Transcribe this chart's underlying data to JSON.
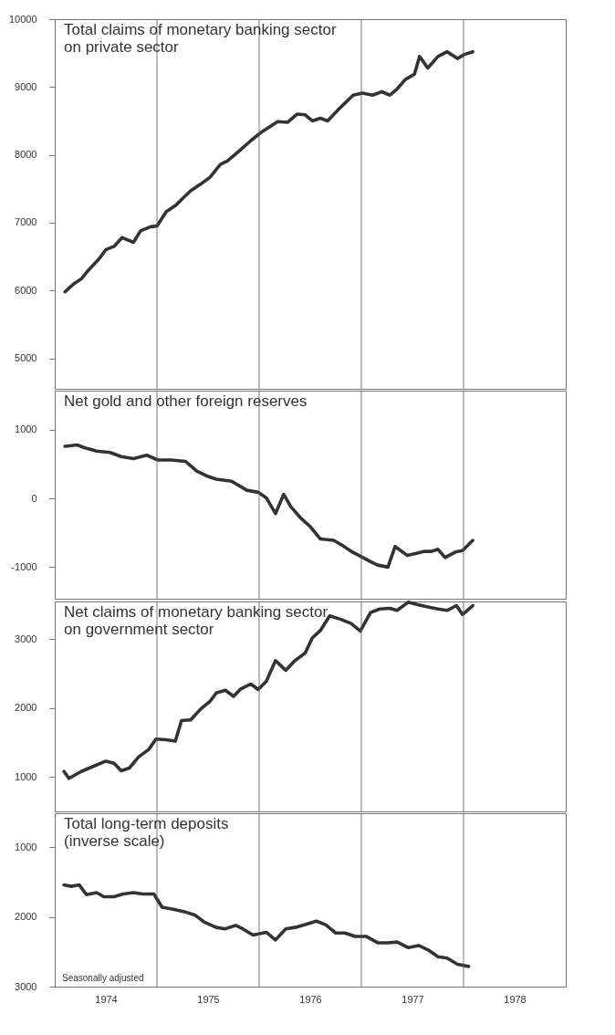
{
  "chart_data": [
    {
      "type": "line",
      "title": "Total claims of monetary banking sector\non private sector",
      "xlim": [
        1974,
        1979
      ],
      "tick_labels": "y",
      "ylim": [
        4550,
        10000
      ],
      "yticks": [
        5000,
        6000,
        7000,
        8000,
        9000,
        10000
      ],
      "ref_lines": [
        {
          "axis": "x",
          "value": 1975
        },
        {
          "axis": "x",
          "value": 1976
        },
        {
          "axis": "x",
          "value": 1977
        },
        {
          "axis": "x",
          "value": 1978
        }
      ],
      "grid": false,
      "series": [
        {
          "color": "#333333",
          "x": [
            1974.1,
            1974.18,
            1974.26,
            1974.33,
            1974.43,
            1974.5,
            1974.58,
            1974.66,
            1974.77,
            1974.84,
            1974.94,
            1975.0,
            1975.09,
            1975.18,
            1975.26,
            1975.33,
            1975.43,
            1975.52,
            1975.62,
            1975.69,
            1975.8,
            1975.92,
            1976.01,
            1976.11,
            1976.18,
            1976.28,
            1976.37,
            1976.45,
            1976.52,
            1976.6,
            1976.67,
            1976.79,
            1976.92,
            1977.01,
            1977.11,
            1977.2,
            1977.28,
            1977.35,
            1977.43,
            1977.52,
            1977.57,
            1977.65,
            1977.75,
            1977.84,
            1977.94,
            1978.01,
            1978.09
          ],
          "values": [
            5980,
            6090,
            6170,
            6300,
            6460,
            6600,
            6650,
            6780,
            6710,
            6880,
            6940,
            6950,
            7160,
            7250,
            7370,
            7470,
            7570,
            7670,
            7860,
            7910,
            8050,
            8210,
            8320,
            8420,
            8490,
            8480,
            8600,
            8590,
            8500,
            8540,
            8500,
            8690,
            8880,
            8910,
            8880,
            8930,
            8880,
            8970,
            9110,
            9190,
            9450,
            9280,
            9450,
            9520,
            9420,
            9480,
            9520
          ]
        }
      ]
    },
    {
      "type": "line",
      "title": "Net gold and other foreign reserves",
      "xlim": [
        1974,
        1979
      ],
      "tick_labels": "y",
      "ylim": [
        -1460,
        1570
      ],
      "yticks": [
        -1000,
        0,
        1000
      ],
      "ref_lines": [
        {
          "axis": "x",
          "value": 1975
        },
        {
          "axis": "x",
          "value": 1976
        },
        {
          "axis": "x",
          "value": 1977
        },
        {
          "axis": "x",
          "value": 1978
        }
      ],
      "grid": false,
      "series": [
        {
          "color": "#333333",
          "x": [
            1974.1,
            1974.22,
            1974.29,
            1974.41,
            1974.54,
            1974.65,
            1974.77,
            1974.9,
            1975.01,
            1975.14,
            1975.28,
            1975.39,
            1975.5,
            1975.58,
            1975.73,
            1975.88,
            1975.99,
            1976.07,
            1976.16,
            1976.24,
            1976.31,
            1976.41,
            1976.5,
            1976.6,
            1976.73,
            1976.82,
            1976.9,
            1976.99,
            1977.09,
            1977.16,
            1977.26,
            1977.33,
            1977.45,
            1977.54,
            1977.62,
            1977.69,
            1977.75,
            1977.82,
            1977.92,
            1977.99,
            1978.09
          ],
          "values": [
            760,
            780,
            740,
            690,
            670,
            610,
            580,
            630,
            560,
            560,
            540,
            400,
            320,
            280,
            250,
            120,
            90,
            10,
            -220,
            60,
            -120,
            -290,
            -410,
            -590,
            -610,
            -690,
            -770,
            -840,
            -920,
            -970,
            -1000,
            -700,
            -830,
            -800,
            -770,
            -770,
            -740,
            -860,
            -780,
            -760,
            -610
          ]
        }
      ]
    },
    {
      "type": "line",
      "title": "Net claims of monetary banking sector\non government sector",
      "xlim": [
        1974,
        1979
      ],
      "tick_labels": "y",
      "ylim": [
        500,
        3550
      ],
      "yticks": [
        1000,
        2000,
        3000
      ],
      "ref_lines": [
        {
          "axis": "x",
          "value": 1975
        },
        {
          "axis": "x",
          "value": 1976
        },
        {
          "axis": "x",
          "value": 1977
        },
        {
          "axis": "x",
          "value": 1978
        }
      ],
      "grid": false,
      "series": [
        {
          "color": "#333333",
          "x": [
            1974.09,
            1974.14,
            1974.26,
            1974.37,
            1974.5,
            1974.58,
            1974.65,
            1974.73,
            1974.82,
            1974.92,
            1974.99,
            1975.09,
            1975.18,
            1975.24,
            1975.33,
            1975.43,
            1975.52,
            1975.58,
            1975.67,
            1975.75,
            1975.82,
            1975.92,
            1975.99,
            1976.07,
            1976.16,
            1976.26,
            1976.35,
            1976.45,
            1976.52,
            1976.6,
            1976.69,
            1976.8,
            1976.9,
            1976.99,
            1977.09,
            1977.18,
            1977.28,
            1977.35,
            1977.46,
            1977.56,
            1977.65,
            1977.75,
            1977.84,
            1977.93,
            1977.99,
            1978.09
          ],
          "values": [
            1080,
            980,
            1080,
            1150,
            1230,
            1200,
            1090,
            1130,
            1290,
            1400,
            1550,
            1540,
            1520,
            1820,
            1830,
            1990,
            2100,
            2220,
            2260,
            2170,
            2280,
            2350,
            2270,
            2390,
            2690,
            2550,
            2690,
            2800,
            3020,
            3130,
            3340,
            3290,
            3230,
            3120,
            3390,
            3440,
            3450,
            3420,
            3540,
            3500,
            3470,
            3440,
            3420,
            3490,
            3360,
            3490
          ]
        }
      ]
    },
    {
      "type": "line",
      "title": "Total long-term deposits\n(inverse scale)",
      "xlim": [
        1974,
        1979
      ],
      "xticks": [
        {
          "value": 1974.5,
          "label": "1974"
        },
        {
          "value": 1975.5,
          "label": "1975"
        },
        {
          "value": 1976.5,
          "label": "1976"
        },
        {
          "value": 1977.5,
          "label": "1977"
        },
        {
          "value": 1978.5,
          "label": "1978"
        }
      ],
      "ylim": [
        3000,
        510
      ],
      "yticks": [
        1000,
        2000,
        3000
      ],
      "ref_lines": [
        {
          "axis": "x",
          "value": 1975
        },
        {
          "axis": "x",
          "value": 1976
        },
        {
          "axis": "x",
          "value": 1977
        },
        {
          "axis": "x",
          "value": 1978
        }
      ],
      "grid": false,
      "annotations": [
        "Seasonally adjusted"
      ],
      "series": [
        {
          "color": "#333333",
          "x": [
            1974.09,
            1974.16,
            1974.24,
            1974.31,
            1974.41,
            1974.48,
            1974.58,
            1974.67,
            1974.77,
            1974.86,
            1974.97,
            1975.05,
            1975.16,
            1975.28,
            1975.37,
            1975.46,
            1975.58,
            1975.67,
            1975.77,
            1975.84,
            1975.94,
            1976.07,
            1976.16,
            1976.26,
            1976.35,
            1976.45,
            1976.56,
            1976.65,
            1976.75,
            1976.84,
            1976.94,
            1977.05,
            1977.16,
            1977.26,
            1977.35,
            1977.46,
            1977.56,
            1977.65,
            1977.75,
            1977.84,
            1977.94,
            1978.05
          ],
          "values": [
            1540,
            1560,
            1540,
            1680,
            1650,
            1710,
            1710,
            1670,
            1650,
            1670,
            1670,
            1860,
            1890,
            1930,
            1970,
            2070,
            2150,
            2170,
            2120,
            2170,
            2260,
            2220,
            2330,
            2170,
            2150,
            2110,
            2060,
            2110,
            2230,
            2230,
            2280,
            2280,
            2370,
            2370,
            2360,
            2440,
            2410,
            2470,
            2570,
            2590,
            2680,
            2710
          ]
        }
      ]
    }
  ]
}
